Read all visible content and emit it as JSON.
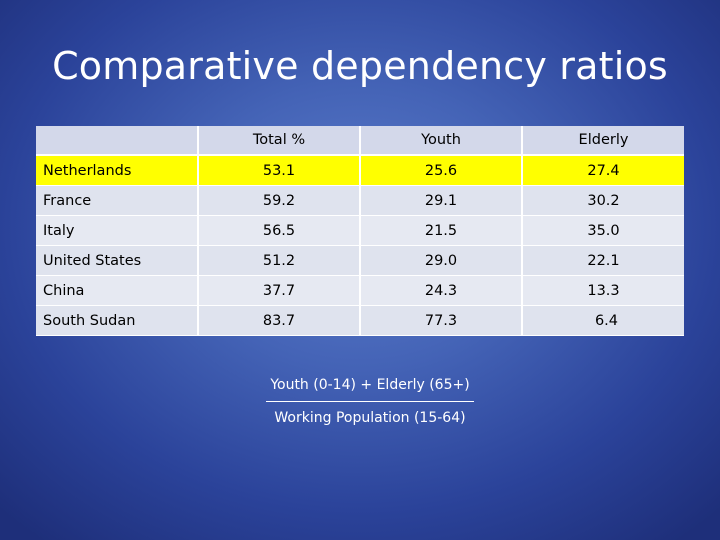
{
  "slide": {
    "title": "Comparative dependency ratios"
  },
  "table": {
    "headers": [
      "",
      "Total %",
      "Youth",
      "Elderly"
    ],
    "rows": [
      {
        "country": "Netherlands",
        "total": "53.1",
        "youth": "25.6",
        "elderly": "27.4",
        "highlighted": true
      },
      {
        "country": "France",
        "total": "59.2",
        "youth": "29.1",
        "elderly": "30.2"
      },
      {
        "country": "Italy",
        "total": "56.5",
        "youth": "21.5",
        "elderly": "35.0"
      },
      {
        "country": "United States",
        "total": "51.2",
        "youth": "29.0",
        "elderly": "22.1"
      },
      {
        "country": "China",
        "total": "37.7",
        "youth": "24.3",
        "elderly": "13.3"
      },
      {
        "country": "South Sudan",
        "total": "83.7",
        "youth": "77.3",
        "elderly": "6.4"
      }
    ]
  },
  "formula": {
    "numerator": "Youth (0-14) + Elderly (65+)",
    "denominator": "Working Population (15-64)"
  },
  "colors": {
    "highlight": "#ffff00",
    "header_bg": "#d3d8ea",
    "row_bg": "#e6e9f2"
  }
}
